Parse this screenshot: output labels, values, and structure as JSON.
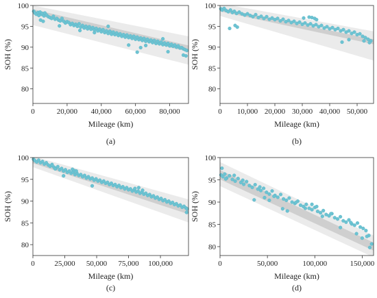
{
  "colors": {
    "point": "#6cc3d2",
    "point_edge": "#5ab3c4",
    "band_outer": "#ebebeb",
    "band_inner": "#cfcfcf",
    "axis": "#333333"
  },
  "chart_data": [
    {
      "type": "scatter",
      "caption": "(a)",
      "xlabel": "Mileage (km)",
      "ylabel": "SOH (%)",
      "xlim": [
        0,
        91000
      ],
      "ylim": [
        76.5,
        100
      ],
      "xticks": [
        0,
        20000,
        40000,
        60000,
        80000
      ],
      "xtick_labels": [
        "0",
        "20,000",
        "40,000",
        "60,000",
        "80,000"
      ],
      "yticks": [
        80,
        85,
        90,
        95,
        100
      ],
      "ytick_labels": [
        "80",
        "85",
        "90",
        "95",
        "100"
      ],
      "band_outer": {
        "x": [
          0,
          91000
        ],
        "upper": [
          100,
          92.6
        ],
        "lower": [
          95.3,
          85.8
        ]
      },
      "band_inner": {
        "x": [
          0,
          91000
        ],
        "upper": [
          99.1,
          90.4
        ],
        "lower": [
          97.9,
          88.9
        ]
      },
      "x": [
        500,
        1200,
        2000,
        3000,
        3500,
        4200,
        5000,
        5500,
        6500,
        7000,
        8000,
        9000,
        10000,
        11000,
        12000,
        13000,
        14000,
        15000,
        16000,
        17000,
        18000,
        19000,
        20000,
        21000,
        22000,
        23000,
        24000,
        25000,
        26000,
        27000,
        28000,
        29000,
        30000,
        31000,
        32000,
        33000,
        34000,
        35000,
        36000,
        37000,
        38000,
        39000,
        40000,
        41000,
        42000,
        43000,
        44000,
        45000,
        46000,
        47000,
        48000,
        49000,
        50000,
        51000,
        52000,
        53000,
        54000,
        55000,
        56000,
        57000,
        58000,
        59000,
        60000,
        61000,
        62000,
        63000,
        64000,
        65000,
        66000,
        67000,
        68000,
        69000,
        70000,
        71000,
        72000,
        73000,
        74000,
        75000,
        76000,
        77000,
        78000,
        79000,
        80000,
        81000,
        82000,
        83000,
        84000,
        85000,
        86000,
        87000,
        88000,
        89000,
        90000,
        4500,
        6000,
        15500,
        27500,
        36000,
        44000,
        56000,
        61000,
        63000,
        66000,
        76000,
        79000,
        88000,
        89500
      ],
      "y": [
        98.6,
        98.2,
        97.9,
        98.3,
        97.6,
        98.4,
        97.9,
        98.1,
        97.5,
        98.2,
        97.7,
        97.3,
        97.1,
        96.9,
        97.4,
        96.7,
        96.9,
        96.5,
        96.3,
        96.9,
        96.2,
        95.8,
        96.1,
        95.9,
        95.4,
        95.7,
        95.2,
        95.5,
        95.0,
        95.6,
        94.8,
        95.2,
        94.6,
        95.0,
        94.4,
        94.9,
        94.3,
        94.7,
        94.1,
        94.5,
        93.9,
        94.3,
        93.7,
        94.2,
        93.5,
        93.9,
        93.3,
        93.8,
        93.1,
        93.6,
        93.0,
        93.4,
        92.8,
        93.2,
        92.6,
        93.0,
        92.4,
        92.9,
        92.3,
        92.7,
        92.1,
        92.6,
        91.9,
        92.4,
        91.8,
        92.2,
        91.6,
        92.1,
        91.4,
        91.9,
        91.3,
        91.7,
        91.1,
        91.6,
        90.9,
        91.4,
        90.8,
        91.2,
        90.6,
        91.0,
        90.5,
        90.9,
        90.3,
        90.7,
        90.2,
        90.5,
        90.0,
        90.3,
        89.8,
        89.9,
        89.6,
        89.4,
        89.2,
        96.5,
        96.2,
        95.1,
        94.0,
        93.5,
        95.0,
        90.5,
        88.8,
        89.9,
        90.4,
        92.0,
        88.9,
        88.1,
        87.9
      ]
    },
    {
      "type": "scatter",
      "caption": "(b)",
      "xlabel": "Mileage (km)",
      "ylabel": "SOH (%)",
      "xlim": [
        0,
        56000
      ],
      "ylim": [
        76.5,
        100
      ],
      "xticks": [
        0,
        10000,
        20000,
        30000,
        40000,
        50000
      ],
      "xtick_labels": [
        "0",
        "10,000",
        "20,000",
        "30,000",
        "40,000",
        "50,000"
      ],
      "yticks": [
        80,
        85,
        90,
        95,
        100
      ],
      "ytick_labels": [
        "80",
        "85",
        "90",
        "95",
        "100"
      ],
      "band_outer": {
        "x": [
          0,
          56000
        ],
        "upper": [
          100.5,
          93.8
        ],
        "lower": [
          97.5,
          86.8
        ]
      },
      "band_inner": {
        "x": [
          0,
          56000
        ],
        "upper": [
          99.4,
          91.9
        ],
        "lower": [
          98.6,
          90.7
        ]
      },
      "x": [
        300,
        800,
        1500,
        2200,
        3000,
        3800,
        4500,
        5200,
        6000,
        7000,
        8000,
        9000,
        10000,
        11000,
        12000,
        13000,
        14000,
        15000,
        16000,
        17000,
        18000,
        19000,
        20000,
        21000,
        22000,
        23000,
        24000,
        25000,
        26000,
        27000,
        28000,
        29000,
        30000,
        31000,
        32000,
        33000,
        34000,
        35000,
        36000,
        37000,
        38000,
        39000,
        40000,
        41000,
        42000,
        43000,
        44000,
        45000,
        46000,
        47000,
        48000,
        49000,
        50000,
        51000,
        52000,
        53000,
        54000,
        55000,
        3500,
        5500,
        6300,
        30500,
        32500,
        33500,
        34500,
        35200,
        44500,
        47000,
        52500,
        54500
      ],
      "y": [
        99.2,
        98.9,
        99.3,
        98.8,
        98.5,
        98.9,
        98.3,
        98.6,
        98.1,
        98.4,
        98.0,
        97.7,
        98.0,
        97.6,
        97.3,
        97.8,
        97.1,
        97.4,
        96.9,
        97.3,
        96.7,
        97.0,
        96.6,
        96.9,
        96.3,
        96.7,
        96.1,
        96.4,
        95.9,
        96.2,
        95.7,
        96.0,
        95.5,
        95.8,
        95.3,
        95.6,
        95.1,
        95.4,
        94.9,
        95.2,
        94.6,
        94.9,
        94.4,
        94.7,
        94.2,
        94.5,
        93.9,
        94.2,
        93.6,
        93.9,
        93.3,
        93.6,
        93.0,
        93.2,
        92.6,
        92.3,
        91.9,
        91.5,
        94.5,
        95.2,
        94.8,
        97.0,
        97.2,
        97.1,
        96.9,
        96.6,
        91.2,
        91.8,
        91.5,
        91.1
      ]
    },
    {
      "type": "scatter",
      "caption": "(c)",
      "xlabel": "Mileage (km)",
      "ylabel": "SOH (%)",
      "xlim": [
        0,
        122000
      ],
      "ylim": [
        77.5,
        100
      ],
      "xticks": [
        0,
        25000,
        50000,
        75000,
        100000
      ],
      "xtick_labels": [
        "0",
        "25,000",
        "50,000",
        "75,000",
        "100,000"
      ],
      "yticks": [
        80,
        85,
        90,
        95,
        100
      ],
      "ytick_labels": [
        "80",
        "85",
        "90",
        "95",
        "100"
      ],
      "band_outer": {
        "x": [
          0,
          122000
        ],
        "upper": [
          100.3,
          90.4
        ],
        "lower": [
          97.8,
          85.1
        ]
      },
      "band_inner": {
        "x": [
          0,
          122000
        ],
        "upper": [
          99.5,
          88.6
        ],
        "lower": [
          98.7,
          87.0
        ]
      },
      "x": [
        500,
        1500,
        3000,
        4500,
        6000,
        7500,
        9000,
        10500,
        12000,
        13500,
        15000,
        16500,
        18000,
        19500,
        21000,
        22500,
        24000,
        25500,
        27000,
        28500,
        30000,
        31500,
        33000,
        34500,
        36000,
        37500,
        39000,
        40500,
        42000,
        43500,
        45000,
        46500,
        48000,
        49500,
        51000,
        52500,
        54000,
        55500,
        57000,
        58500,
        60000,
        61500,
        63000,
        64500,
        66000,
        67500,
        69000,
        70500,
        72000,
        73500,
        75000,
        76500,
        78000,
        79500,
        81000,
        82500,
        84000,
        85500,
        87000,
        88500,
        90000,
        91500,
        93000,
        94500,
        96000,
        97500,
        99000,
        100500,
        102000,
        103500,
        105000,
        106500,
        108000,
        109500,
        111000,
        112500,
        114000,
        115500,
        117000,
        118500,
        120000,
        121000,
        15000,
        17500,
        24000,
        31000,
        32500,
        34000,
        46500,
        80000,
        83000,
        86000,
        120500
      ],
      "y": [
        99.6,
        99.3,
        99.0,
        99.4,
        98.8,
        99.1,
        98.5,
        98.8,
        98.3,
        98.0,
        98.4,
        97.8,
        97.5,
        97.9,
        97.2,
        97.5,
        96.9,
        97.2,
        96.6,
        96.9,
        96.4,
        96.7,
        96.1,
        96.4,
        95.9,
        96.1,
        95.6,
        95.9,
        95.3,
        95.6,
        95.1,
        95.3,
        94.8,
        95.1,
        94.6,
        94.8,
        94.3,
        94.6,
        94.1,
        94.3,
        93.8,
        94.1,
        93.6,
        93.8,
        93.3,
        93.6,
        93.1,
        93.3,
        92.8,
        93.1,
        92.6,
        92.8,
        92.3,
        92.6,
        92.1,
        92.3,
        91.8,
        92.1,
        91.6,
        91.8,
        91.3,
        91.5,
        91.0,
        91.2,
        90.7,
        90.9,
        90.4,
        90.6,
        90.1,
        90.3,
        89.8,
        90.0,
        89.5,
        89.7,
        89.2,
        89.4,
        88.9,
        89.1,
        88.6,
        88.8,
        88.4,
        88.2,
        98.2,
        97.4,
        95.8,
        97.3,
        97.0,
        96.9,
        93.5,
        92.9,
        93.1,
        92.5,
        87.4
      ]
    },
    {
      "type": "scatter",
      "caption": "(d)",
      "xlabel": "Mileage (km)",
      "ylabel": "SOH (%)",
      "xlim": [
        0,
        162000
      ],
      "ylim": [
        78,
        100
      ],
      "xticks": [
        0,
        50000,
        100000,
        150000
      ],
      "xtick_labels": [
        "0",
        "50,000",
        "100,000",
        "150,000"
      ],
      "yticks": [
        80,
        85,
        90,
        95,
        100
      ],
      "ytick_labels": [
        "80",
        "85",
        "90",
        "95",
        "100"
      ],
      "band_outer": {
        "x": [
          0,
          162000
        ],
        "upper": [
          99.0,
          82.5
        ],
        "lower": [
          93.6,
          77.6
        ]
      },
      "band_inner": {
        "x": [
          0,
          162000
        ],
        "upper": [
          97.2,
          80.9
        ],
        "lower": [
          95.1,
          79.1
        ]
      },
      "x": [
        1000,
        3000,
        5000,
        7000,
        10000,
        13000,
        16000,
        19000,
        22000,
        25000,
        28000,
        31000,
        34000,
        37000,
        40000,
        43000,
        46000,
        49000,
        52000,
        55000,
        58000,
        61000,
        64000,
        67000,
        70000,
        73000,
        76000,
        79000,
        82000,
        85000,
        88000,
        91000,
        94000,
        97000,
        100000,
        103000,
        106000,
        109000,
        112000,
        115000,
        118000,
        121000,
        124000,
        127000,
        130000,
        133000,
        136000,
        139000,
        142000,
        145000,
        148000,
        151000,
        154000,
        157000,
        160000,
        2000,
        6000,
        15000,
        24000,
        36000,
        42000,
        47000,
        52000,
        57000,
        66000,
        71000,
        80000,
        90000,
        97000,
        102000,
        108000,
        117000,
        127000,
        138000,
        144000,
        150000,
        155000,
        158000
      ],
      "y": [
        96.1,
        95.7,
        96.3,
        95.4,
        95.9,
        95.1,
        94.7,
        95.3,
        94.4,
        94.0,
        94.6,
        93.7,
        93.3,
        93.9,
        92.9,
        92.6,
        93.1,
        92.2,
        91.8,
        92.5,
        91.5,
        91.1,
        91.7,
        90.7,
        90.4,
        90.9,
        90.0,
        89.7,
        90.2,
        89.3,
        89.0,
        89.5,
        88.6,
        88.3,
        88.8,
        87.9,
        87.6,
        88.1,
        87.2,
        86.9,
        87.4,
        86.5,
        86.2,
        86.7,
        85.8,
        85.5,
        86.0,
        85.1,
        84.8,
        85.3,
        84.4,
        84.1,
        83.6,
        82.5,
        80.6,
        97.6,
        95.2,
        96.0,
        94.9,
        90.5,
        93.4,
        91.0,
        90.4,
        91.3,
        88.5,
        88.0,
        89.9,
        88.6,
        89.5,
        89.0,
        86.8,
        87.4,
        84.3,
        85.4,
        82.9,
        81.9,
        82.3,
        79.8
      ]
    }
  ]
}
